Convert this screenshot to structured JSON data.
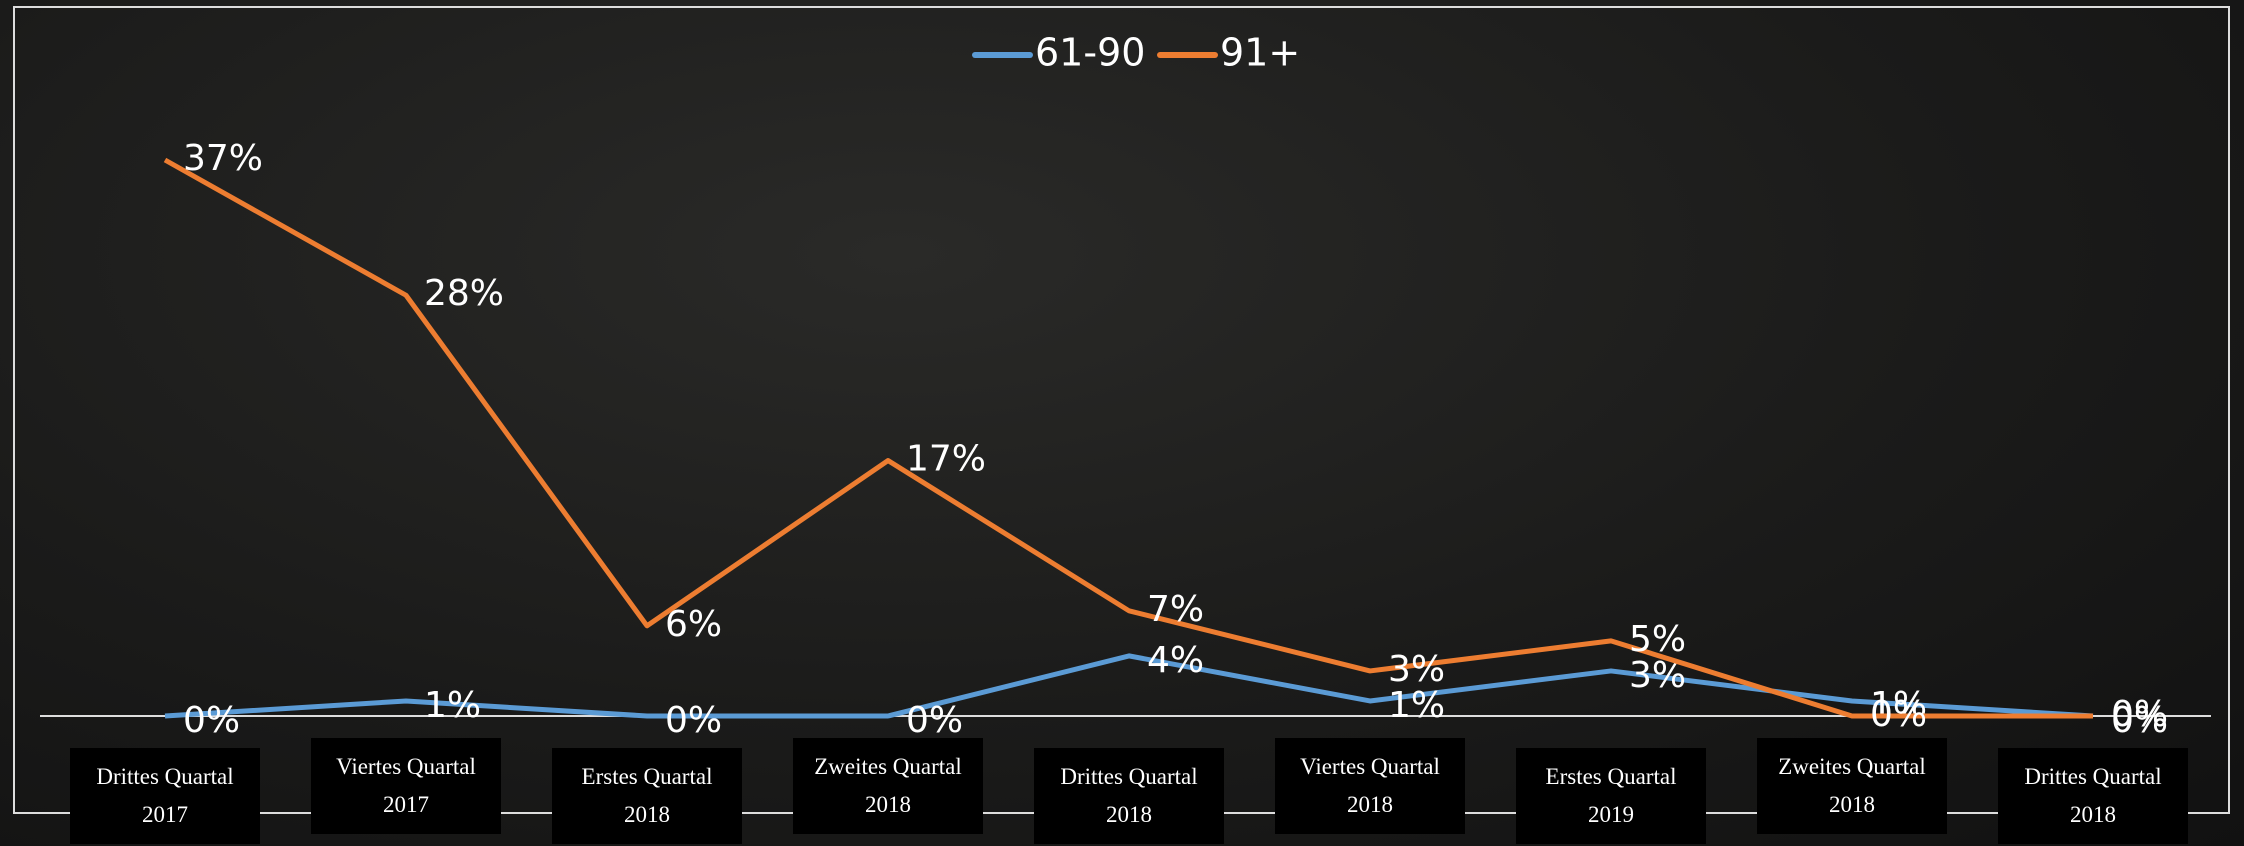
{
  "chart_data": {
    "type": "line",
    "categories": [
      "Drittes Quartal 2017",
      "Viertes Quartal 2017",
      "Erstes Quartal 2018",
      "Zweites Quartal 2018",
      "Drittes Quartal 2018",
      "Viertes Quartal 2018",
      "Erstes Quartal 2019",
      "Zweites Quartal 2018",
      "Drittes Quartal 2018"
    ],
    "series": [
      {
        "name": "61-90",
        "color": "#5b9bd5",
        "values": [
          0,
          1,
          0,
          0,
          4,
          1,
          3,
          1,
          0
        ],
        "value_labels": [
          "0%",
          "1%",
          "0%",
          "0%",
          "4%",
          "1%",
          "3%",
          "1%",
          "0%"
        ]
      },
      {
        "name": "91+",
        "color": "#ed7d31",
        "values": [
          37,
          28,
          6,
          17,
          7,
          3,
          5,
          0,
          0
        ],
        "value_labels": [
          "37%",
          "28%",
          "6%",
          "17%",
          "7%",
          "3%",
          "5%",
          "0%",
          "0%"
        ]
      }
    ],
    "legend": "top"
  }
}
